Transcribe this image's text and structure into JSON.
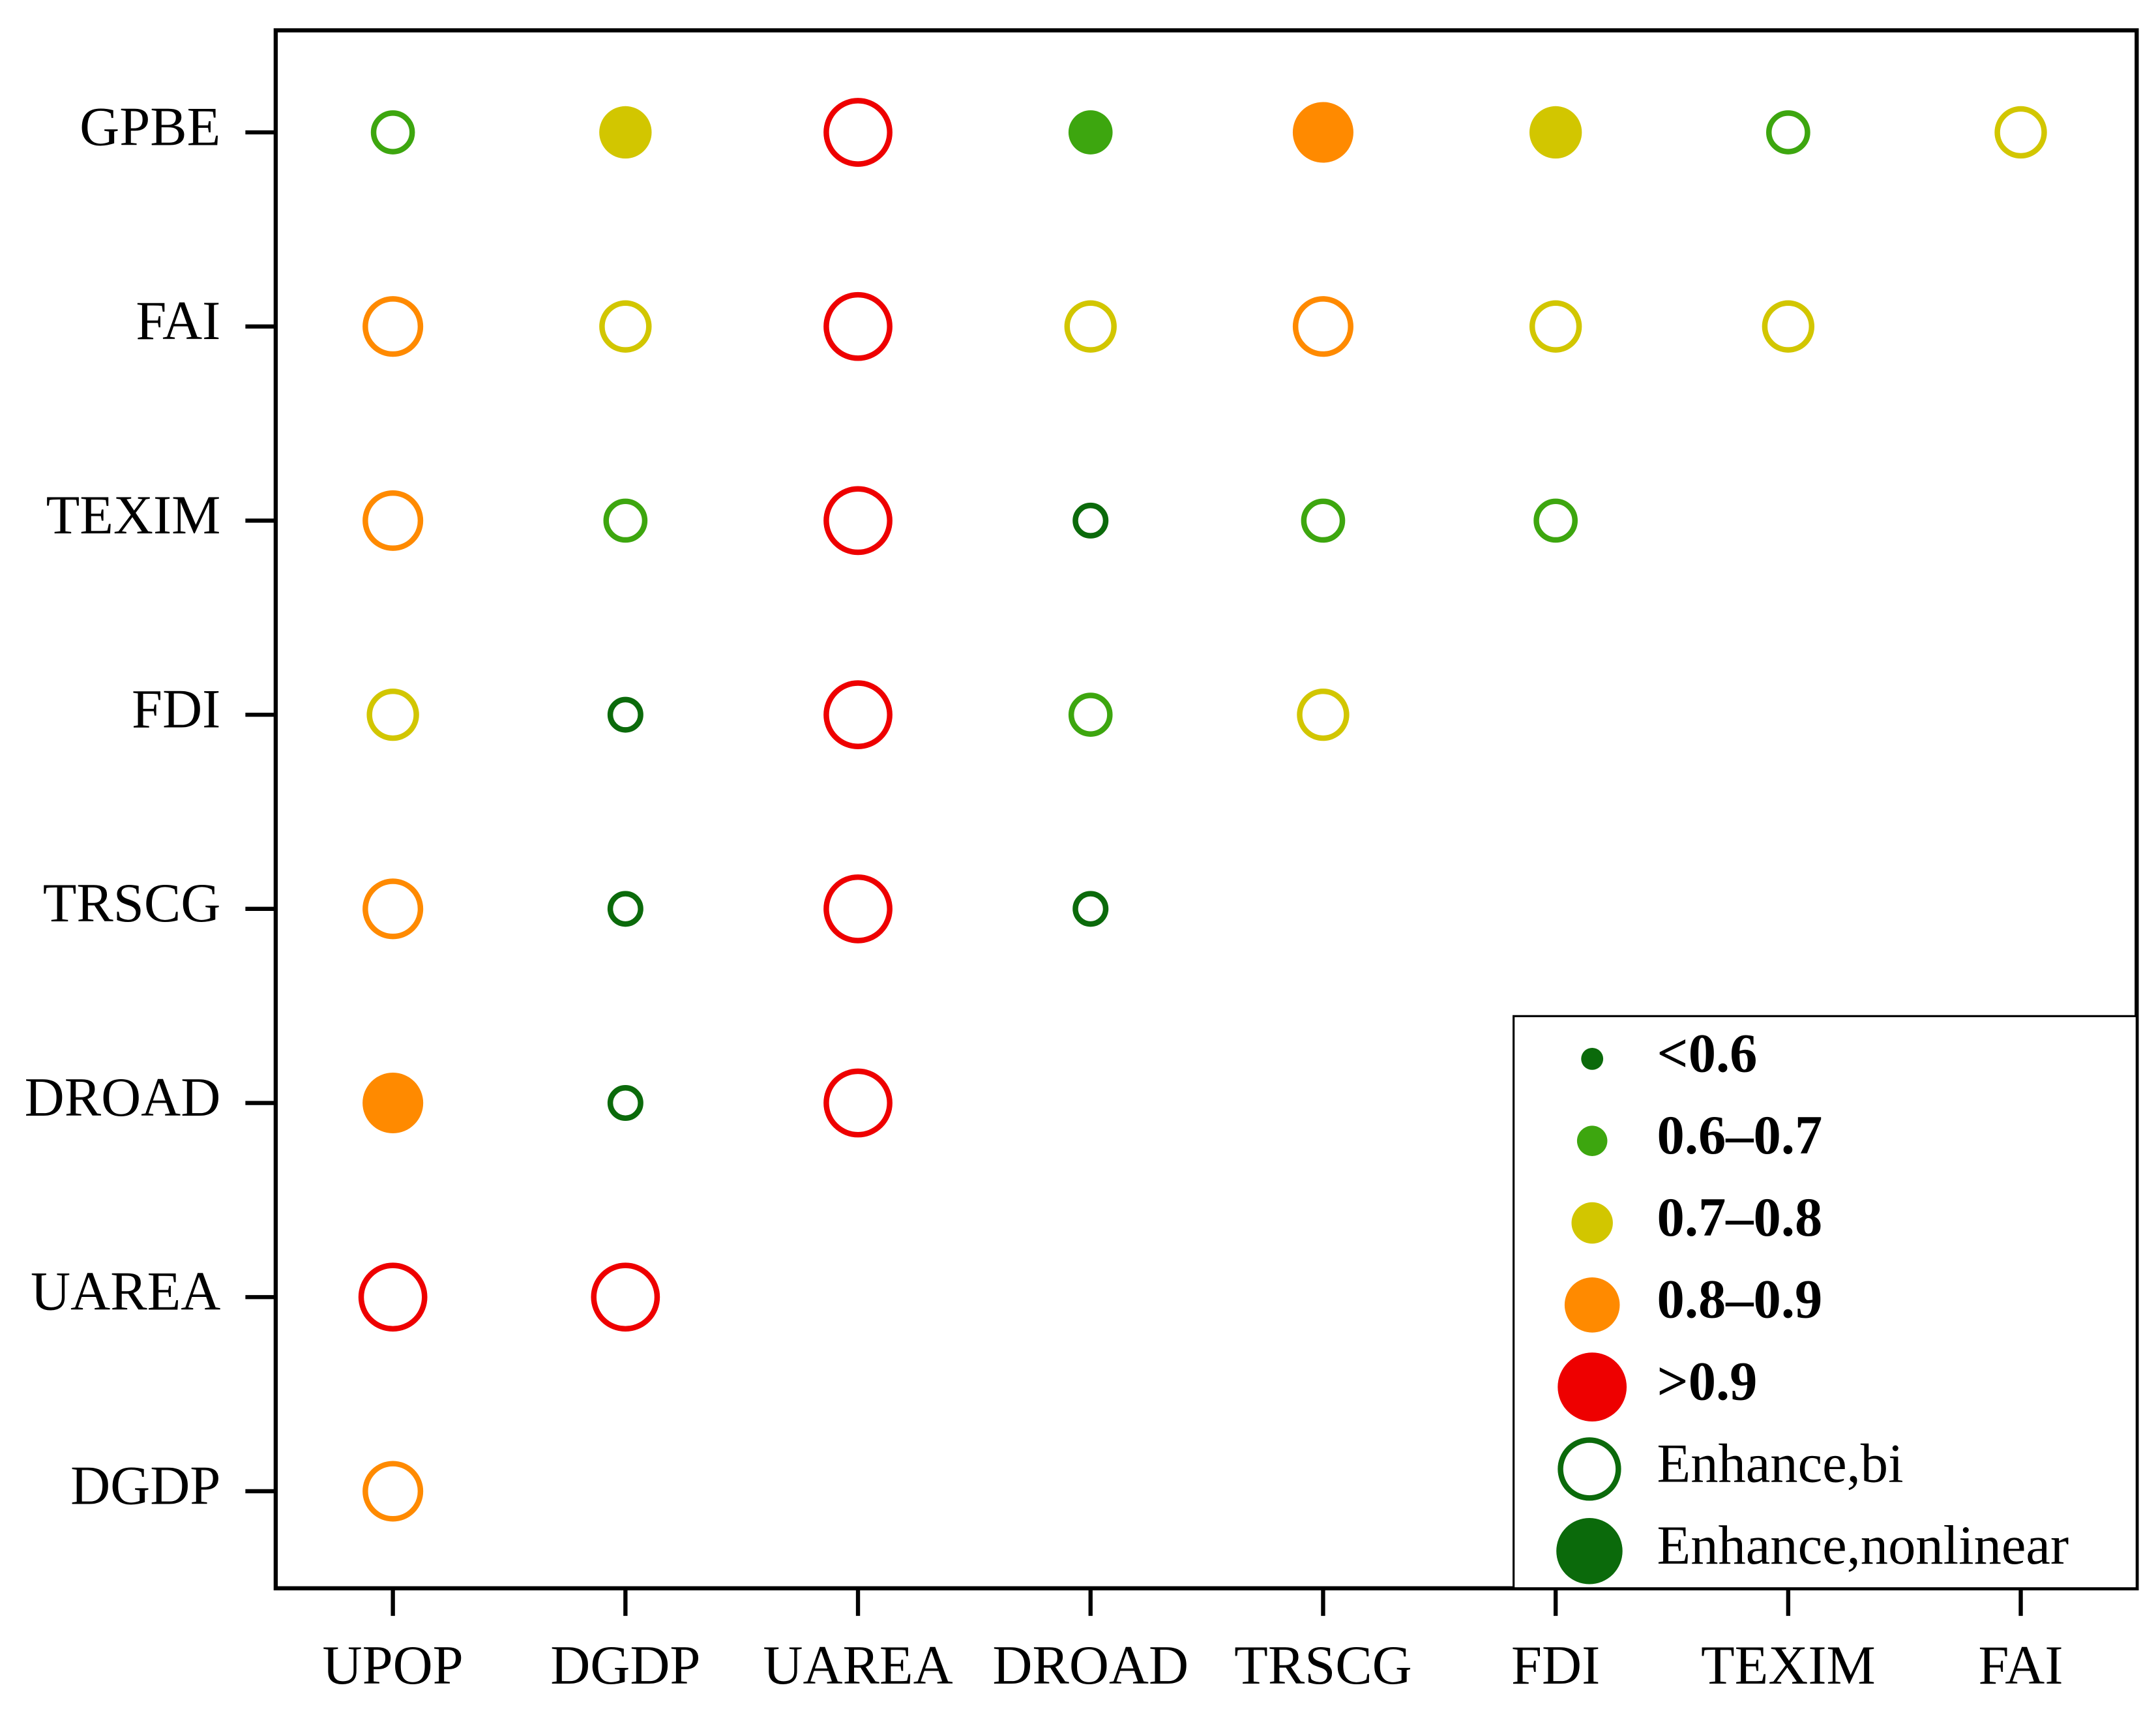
{
  "chart_data": {
    "type": "bubble-matrix",
    "x_categories": [
      "UPOP",
      "DGDP",
      "UAREA",
      "DROAD",
      "TRSCG",
      "FDI",
      "TEXIM",
      "FAI"
    ],
    "y_categories": [
      "GPBE",
      "FAI",
      "TEXIM",
      "FDI",
      "TRSCG",
      "DROAD",
      "UAREA",
      "DGDP"
    ],
    "classes": [
      {
        "name": "<0.6",
        "color": "#0b6a0b"
      },
      {
        "name": "0.6–0.7",
        "color": "#3da60f"
      },
      {
        "name": "0.7–0.8",
        "color": "#d2c600"
      },
      {
        "name": "0.8–0.9",
        "color": "#ff8a00"
      },
      {
        "name": ">0.9",
        "color": "#ee0000"
      }
    ],
    "styles": [
      {
        "name": "Enhance,bi",
        "filled": false
      },
      {
        "name": "Enhance,nonlinear",
        "filled": true
      }
    ],
    "style_color": "#0b6a0b",
    "points": [
      {
        "row": 0,
        "col": 0,
        "class": 1,
        "style": 0
      },
      {
        "row": 0,
        "col": 1,
        "class": 2,
        "style": 1
      },
      {
        "row": 0,
        "col": 2,
        "class": 4,
        "style": 0
      },
      {
        "row": 0,
        "col": 3,
        "class": 1,
        "style": 1
      },
      {
        "row": 0,
        "col": 4,
        "class": 3,
        "style": 1
      },
      {
        "row": 0,
        "col": 5,
        "class": 2,
        "style": 1
      },
      {
        "row": 0,
        "col": 6,
        "class": 1,
        "style": 0
      },
      {
        "row": 0,
        "col": 7,
        "class": 2,
        "style": 0
      },
      {
        "row": 1,
        "col": 0,
        "class": 3,
        "style": 0
      },
      {
        "row": 1,
        "col": 1,
        "class": 2,
        "style": 0
      },
      {
        "row": 1,
        "col": 2,
        "class": 4,
        "style": 0
      },
      {
        "row": 1,
        "col": 3,
        "class": 2,
        "style": 0
      },
      {
        "row": 1,
        "col": 4,
        "class": 3,
        "style": 0
      },
      {
        "row": 1,
        "col": 5,
        "class": 2,
        "style": 0
      },
      {
        "row": 1,
        "col": 6,
        "class": 2,
        "style": 0
      },
      {
        "row": 2,
        "col": 0,
        "class": 3,
        "style": 0
      },
      {
        "row": 2,
        "col": 1,
        "class": 1,
        "style": 0
      },
      {
        "row": 2,
        "col": 2,
        "class": 4,
        "style": 0
      },
      {
        "row": 2,
        "col": 3,
        "class": 0,
        "style": 0
      },
      {
        "row": 2,
        "col": 4,
        "class": 1,
        "style": 0
      },
      {
        "row": 2,
        "col": 5,
        "class": 1,
        "style": 0
      },
      {
        "row": 3,
        "col": 0,
        "class": 2,
        "style": 0
      },
      {
        "row": 3,
        "col": 1,
        "class": 0,
        "style": 0
      },
      {
        "row": 3,
        "col": 2,
        "class": 4,
        "style": 0
      },
      {
        "row": 3,
        "col": 3,
        "class": 1,
        "style": 0
      },
      {
        "row": 3,
        "col": 4,
        "class": 2,
        "style": 0
      },
      {
        "row": 4,
        "col": 0,
        "class": 3,
        "style": 0
      },
      {
        "row": 4,
        "col": 1,
        "class": 0,
        "style": 0
      },
      {
        "row": 4,
        "col": 2,
        "class": 4,
        "style": 0
      },
      {
        "row": 4,
        "col": 3,
        "class": 0,
        "style": 0
      },
      {
        "row": 5,
        "col": 0,
        "class": 3,
        "style": 1
      },
      {
        "row": 5,
        "col": 1,
        "class": 0,
        "style": 0
      },
      {
        "row": 5,
        "col": 2,
        "class": 4,
        "style": 0
      },
      {
        "row": 6,
        "col": 0,
        "class": 4,
        "style": 0
      },
      {
        "row": 6,
        "col": 1,
        "class": 4,
        "style": 0
      },
      {
        "row": 7,
        "col": 0,
        "class": 3,
        "style": 0
      }
    ]
  }
}
